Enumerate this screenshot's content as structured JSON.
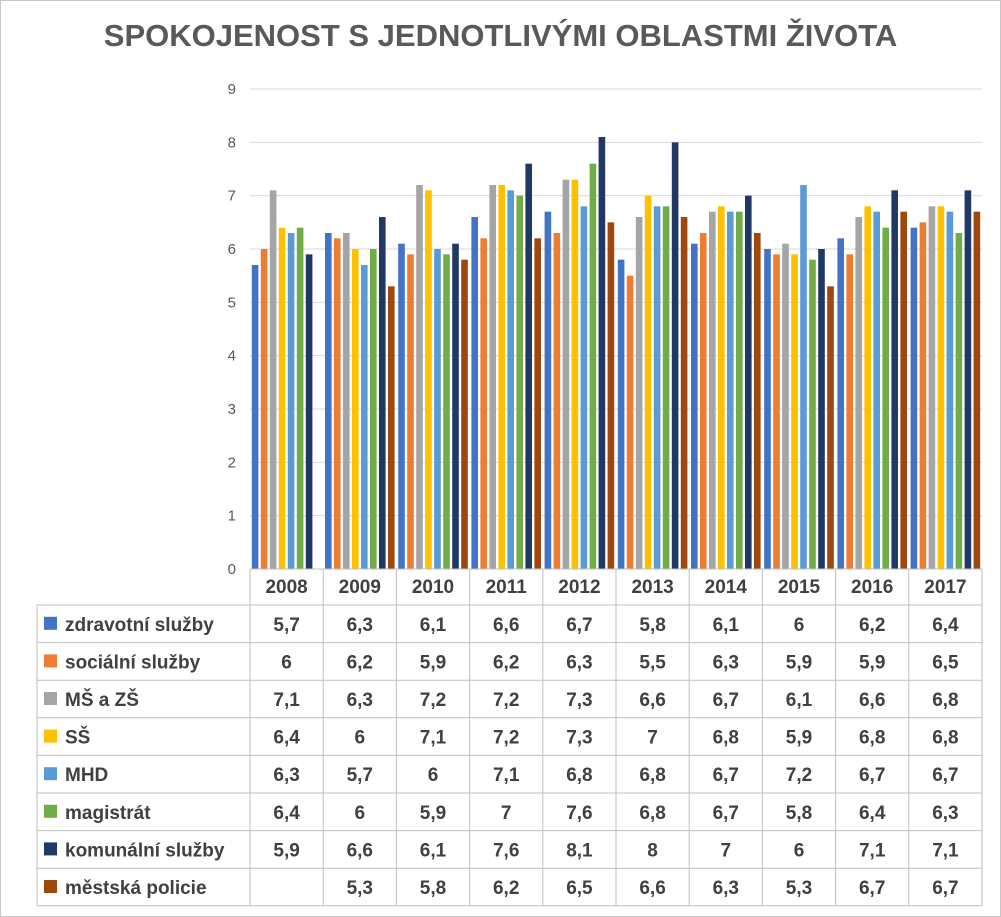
{
  "chart_data": {
    "type": "bar",
    "title": "SPOKOJENOST S JEDNOTLIVÝMI OBLASTMI ŽIVOTA",
    "categories": [
      "2008",
      "2009",
      "2010",
      "2011",
      "2012",
      "2013",
      "2014",
      "2015",
      "2016",
      "2017"
    ],
    "ylim": [
      0,
      9
    ],
    "yticks": [
      "0",
      "1",
      "2",
      "3",
      "4",
      "5",
      "6",
      "7",
      "8",
      "9"
    ],
    "grid": true,
    "legend": "data-table",
    "series": [
      {
        "name": "zdravotní služby",
        "color": "#4472c4",
        "values": [
          5.7,
          6.3,
          6.1,
          6.6,
          6.7,
          5.8,
          6.1,
          6,
          6.2,
          6.4
        ],
        "labels": [
          "5,7",
          "6,3",
          "6,1",
          "6,6",
          "6,7",
          "5,8",
          "6,1",
          "6",
          "6,2",
          "6,4"
        ]
      },
      {
        "name": "sociální služby",
        "color": "#ed7d31",
        "values": [
          6,
          6.2,
          5.9,
          6.2,
          6.3,
          5.5,
          6.3,
          5.9,
          5.9,
          6.5
        ],
        "labels": [
          "6",
          "6,2",
          "5,9",
          "6,2",
          "6,3",
          "5,5",
          "6,3",
          "5,9",
          "5,9",
          "6,5"
        ]
      },
      {
        "name": "MŠ a ZŠ",
        "color": "#a5a5a5",
        "values": [
          7.1,
          6.3,
          7.2,
          7.2,
          7.3,
          6.6,
          6.7,
          6.1,
          6.6,
          6.8
        ],
        "labels": [
          "7,1",
          "6,3",
          "7,2",
          "7,2",
          "7,3",
          "6,6",
          "6,7",
          "6,1",
          "6,6",
          "6,8"
        ]
      },
      {
        "name": "SŠ",
        "color": "#ffc000",
        "values": [
          6.4,
          6,
          7.1,
          7.2,
          7.3,
          7,
          6.8,
          5.9,
          6.8,
          6.8
        ],
        "labels": [
          "6,4",
          "6",
          "7,1",
          "7,2",
          "7,3",
          "7",
          "6,8",
          "5,9",
          "6,8",
          "6,8"
        ]
      },
      {
        "name": "MHD",
        "color": "#5b9bd5",
        "values": [
          6.3,
          5.7,
          6,
          7.1,
          6.8,
          6.8,
          6.7,
          7.2,
          6.7,
          6.7
        ],
        "labels": [
          "6,3",
          "5,7",
          "6",
          "7,1",
          "6,8",
          "6,8",
          "6,7",
          "7,2",
          "6,7",
          "6,7"
        ]
      },
      {
        "name": "magistrát",
        "color": "#70ad47",
        "values": [
          6.4,
          6,
          5.9,
          7,
          7.6,
          6.8,
          6.7,
          5.8,
          6.4,
          6.3
        ],
        "labels": [
          "6,4",
          "6",
          "5,9",
          "7",
          "7,6",
          "6,8",
          "6,7",
          "5,8",
          "6,4",
          "6,3"
        ]
      },
      {
        "name": "komunální služby",
        "color": "#203864",
        "values": [
          5.9,
          6.6,
          6.1,
          7.6,
          8.1,
          8,
          7,
          6,
          7.1,
          7.1
        ],
        "labels": [
          "5,9",
          "6,6",
          "6,1",
          "7,6",
          "8,1",
          "8",
          "7",
          "6",
          "7,1",
          "7,1"
        ]
      },
      {
        "name": "městská policie",
        "color": "#9e480e",
        "values": [
          null,
          5.3,
          5.8,
          6.2,
          6.5,
          6.6,
          6.3,
          5.3,
          6.7,
          6.7
        ],
        "labels": [
          "",
          "5,3",
          "5,8",
          "6,2",
          "6,5",
          "6,6",
          "6,3",
          "5,3",
          "6,7",
          "6,7"
        ]
      }
    ]
  }
}
